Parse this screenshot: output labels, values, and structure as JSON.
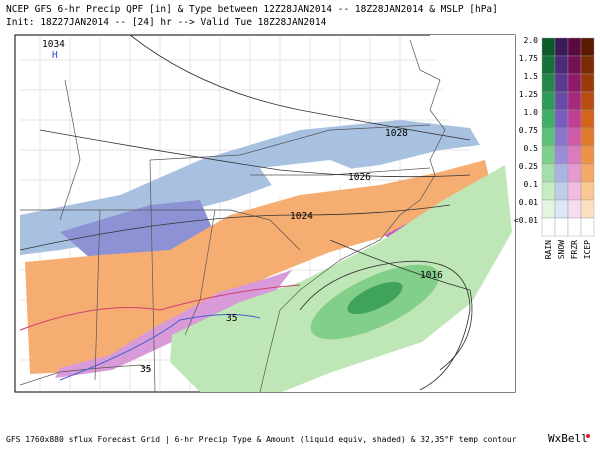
{
  "header": {
    "line1": "NCEP GFS 6-hr Precip QPF [in] & Type between 12Z28JAN2014 -- 18Z28JAN2014 & MSLP [hPa]",
    "line2": "Init: 18Z27JAN2014 -- [24] hr --> Valid Tue 18Z28JAN2014"
  },
  "map": {
    "high_value": "1034",
    "high_symbol": "H",
    "isobar_labels": [
      "1028",
      "1026",
      "1024",
      "1016"
    ],
    "temp_labels": [
      "35",
      "35"
    ]
  },
  "legend": {
    "levels": [
      "2.0",
      "1.75",
      "1.5",
      "1.25",
      "1.0",
      "0.75",
      "0.5",
      "0.25",
      "0.1",
      "0.01",
      "<0.01"
    ],
    "types": [
      "RAIN",
      "SNOW",
      "FRZR",
      "ICEP"
    ]
  },
  "footer": {
    "text": "GFS 1760x880 sflux Forecast Grid | 6-hr Precip Type & Amount (liquid equiv, shaded) & 32,35°F temp contour",
    "brand": "WxBell"
  }
}
